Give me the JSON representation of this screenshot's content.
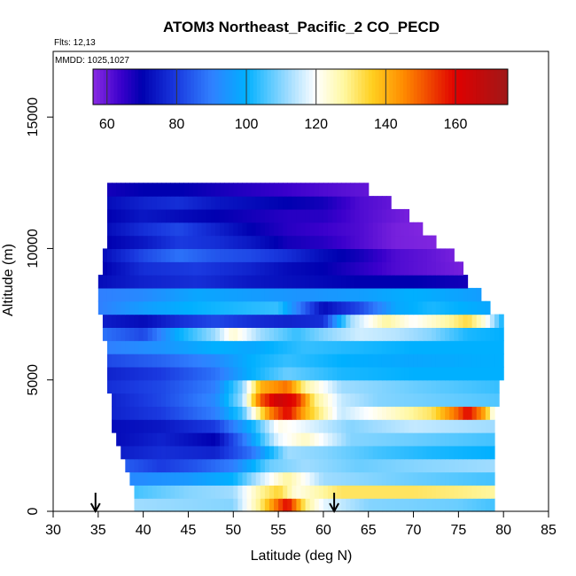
{
  "chart_data": {
    "type": "heatmap",
    "title": "ATOM3 Northeast_Pacific_2 CO_PECD",
    "flights": "Flts: 12,13",
    "mmdd": "MMDD: 1025,1027",
    "xlabel": "Latitude (deg N)",
    "ylabel": "Altitude (m)",
    "xlim": [
      30,
      85
    ],
    "ylim": [
      0,
      17500
    ],
    "x_ticks": [
      30,
      35,
      40,
      45,
      50,
      55,
      60,
      65,
      70,
      75,
      80,
      85
    ],
    "y_ticks": [
      0,
      5000,
      10000,
      15000
    ],
    "colorbar": {
      "range": [
        56,
        175
      ],
      "ticks": [
        60,
        80,
        100,
        120,
        140,
        160
      ],
      "stops": [
        {
          "v": 56,
          "c": "#8a2be2"
        },
        {
          "v": 64,
          "c": "#3a00cc"
        },
        {
          "v": 70,
          "c": "#0000b0"
        },
        {
          "v": 80,
          "c": "#1a3ae0"
        },
        {
          "v": 90,
          "c": "#3080ff"
        },
        {
          "v": 100,
          "c": "#00b0ff"
        },
        {
          "v": 112,
          "c": "#a0dcff"
        },
        {
          "v": 120,
          "c": "#ffffff"
        },
        {
          "v": 128,
          "c": "#fff7a0"
        },
        {
          "v": 136,
          "c": "#ffd020"
        },
        {
          "v": 145,
          "c": "#ff8c00"
        },
        {
          "v": 160,
          "c": "#e00000"
        },
        {
          "v": 175,
          "c": "#a01818"
        }
      ]
    },
    "arrows_lat": [
      34.7,
      61.2
    ],
    "layers": [
      {
        "z0": 0,
        "z1": 500,
        "lat_min": 39.0,
        "lat_max": 79.0,
        "knots": [
          [
            39,
            112
          ],
          [
            50,
            110
          ],
          [
            53,
            130
          ],
          [
            55,
            150
          ],
          [
            56,
            160
          ],
          [
            58,
            130
          ],
          [
            60,
            118
          ],
          [
            65,
            110
          ],
          [
            75,
            108
          ],
          [
            79,
            105
          ]
        ]
      },
      {
        "z0": 500,
        "z1": 1000,
        "lat_min": 39.0,
        "lat_max": 79.0,
        "knots": [
          [
            39,
            105
          ],
          [
            45,
            110
          ],
          [
            50,
            112
          ],
          [
            53,
            128
          ],
          [
            55,
            135
          ],
          [
            57,
            122
          ],
          [
            62,
            132
          ],
          [
            70,
            132
          ],
          [
            75,
            130
          ],
          [
            79,
            128
          ]
        ]
      },
      {
        "z0": 1000,
        "z1": 1500,
        "lat_min": 38.5,
        "lat_max": 79.0,
        "knots": [
          [
            38.5,
            92
          ],
          [
            45,
            95
          ],
          [
            50,
            100
          ],
          [
            53,
            115
          ],
          [
            56,
            128
          ],
          [
            60,
            112
          ],
          [
            65,
            110
          ],
          [
            70,
            108
          ],
          [
            79,
            105
          ]
        ]
      },
      {
        "z0": 1500,
        "z1": 2000,
        "lat_min": 38.0,
        "lat_max": 79.0,
        "knots": [
          [
            38,
            85
          ],
          [
            42,
            80
          ],
          [
            46,
            84
          ],
          [
            50,
            90
          ],
          [
            54,
            108
          ],
          [
            58,
            112
          ],
          [
            64,
            108
          ],
          [
            70,
            110
          ],
          [
            79,
            112
          ]
        ]
      },
      {
        "z0": 2000,
        "z1": 2500,
        "lat_min": 37.5,
        "lat_max": 79.0,
        "knots": [
          [
            37.5,
            75
          ],
          [
            42,
            78
          ],
          [
            48,
            76
          ],
          [
            52,
            88
          ],
          [
            56,
            112
          ],
          [
            60,
            110
          ],
          [
            66,
            105
          ],
          [
            72,
            102
          ],
          [
            79,
            100
          ]
        ]
      },
      {
        "z0": 2500,
        "z1": 3000,
        "lat_min": 37.0,
        "lat_max": 79.0,
        "knots": [
          [
            37,
            72
          ],
          [
            42,
            76
          ],
          [
            48,
            70
          ],
          [
            51,
            88
          ],
          [
            55,
            118
          ],
          [
            58,
            125
          ],
          [
            63,
            110
          ],
          [
            70,
            108
          ],
          [
            79,
            105
          ]
        ]
      },
      {
        "z0": 3000,
        "z1": 3500,
        "lat_min": 36.5,
        "lat_max": 79.0,
        "knots": [
          [
            36.5,
            72
          ],
          [
            42,
            74
          ],
          [
            48,
            80
          ],
          [
            52,
            100
          ],
          [
            55,
            122
          ],
          [
            58,
            118
          ],
          [
            63,
            110
          ],
          [
            70,
            115
          ],
          [
            79,
            112
          ]
        ]
      },
      {
        "z0": 3500,
        "z1": 4000,
        "lat_min": 36.5,
        "lat_max": 79.0,
        "knots": [
          [
            36.5,
            76
          ],
          [
            42,
            80
          ],
          [
            48,
            90
          ],
          [
            51,
            105
          ],
          [
            54,
            145
          ],
          [
            56,
            160
          ],
          [
            58,
            140
          ],
          [
            62,
            115
          ],
          [
            68,
            125
          ],
          [
            72,
            132
          ],
          [
            75,
            150
          ],
          [
            76,
            160
          ],
          [
            78,
            140
          ],
          [
            79,
            118
          ]
        ]
      },
      {
        "z0": 4000,
        "z1": 4500,
        "lat_min": 36.5,
        "lat_max": 79.5,
        "knots": [
          [
            36.5,
            76
          ],
          [
            42,
            82
          ],
          [
            48,
            92
          ],
          [
            51,
            112
          ],
          [
            53,
            150
          ],
          [
            55,
            165
          ],
          [
            57,
            158
          ],
          [
            59,
            130
          ],
          [
            62,
            115
          ],
          [
            66,
            110
          ],
          [
            79.5,
            106
          ]
        ]
      },
      {
        "z0": 4500,
        "z1": 5000,
        "lat_min": 36.0,
        "lat_max": 79.5,
        "knots": [
          [
            36,
            78
          ],
          [
            42,
            82
          ],
          [
            48,
            90
          ],
          [
            51,
            110
          ],
          [
            53,
            140
          ],
          [
            56,
            148
          ],
          [
            58,
            128
          ],
          [
            62,
            112
          ],
          [
            70,
            108
          ],
          [
            79.5,
            104
          ]
        ]
      },
      {
        "z0": 5000,
        "z1": 5500,
        "lat_min": 36.0,
        "lat_max": 80.0,
        "knots": [
          [
            36,
            76
          ],
          [
            42,
            80
          ],
          [
            48,
            88
          ],
          [
            52,
            100
          ],
          [
            56,
            108
          ],
          [
            62,
            102
          ],
          [
            70,
            100
          ],
          [
            80,
            100
          ]
        ]
      },
      {
        "z0": 5500,
        "z1": 6000,
        "lat_min": 36.0,
        "lat_max": 80.0,
        "knots": [
          [
            36,
            82
          ],
          [
            42,
            86
          ],
          [
            48,
            92
          ],
          [
            52,
            100
          ],
          [
            56,
            104
          ],
          [
            62,
            100
          ],
          [
            70,
            98
          ],
          [
            80,
            100
          ]
        ]
      },
      {
        "z0": 6000,
        "z1": 6500,
        "lat_min": 36.0,
        "lat_max": 80.0,
        "knots": [
          [
            36,
            90
          ],
          [
            42,
            94
          ],
          [
            48,
            100
          ],
          [
            52,
            98
          ],
          [
            58,
            104
          ],
          [
            64,
            102
          ],
          [
            70,
            100
          ],
          [
            80,
            100
          ]
        ]
      },
      {
        "z0": 6500,
        "z1": 7000,
        "lat_min": 35.5,
        "lat_max": 80.0,
        "knots": [
          [
            35.5,
            88
          ],
          [
            40,
            82
          ],
          [
            44,
            100
          ],
          [
            48,
            112
          ],
          [
            50,
            124
          ],
          [
            53,
            112
          ],
          [
            57,
            104
          ],
          [
            60,
            110
          ],
          [
            64,
            116
          ],
          [
            68,
            114
          ],
          [
            72,
            110
          ],
          [
            76,
            102
          ],
          [
            80,
            100
          ]
        ]
      },
      {
        "z0": 7000,
        "z1": 7500,
        "lat_min": 35.5,
        "lat_max": 80.0,
        "knots": [
          [
            35.5,
            75
          ],
          [
            40,
            72
          ],
          [
            44,
            78
          ],
          [
            48,
            82
          ],
          [
            52,
            78
          ],
          [
            56,
            76
          ],
          [
            60,
            78
          ],
          [
            63,
            112
          ],
          [
            67,
            128
          ],
          [
            70,
            120
          ],
          [
            74,
            128
          ],
          [
            76,
            134
          ],
          [
            78,
            122
          ],
          [
            80,
            100
          ]
        ]
      },
      {
        "z0": 7500,
        "z1": 8000,
        "lat_min": 35.0,
        "lat_max": 78.5,
        "knots": [
          [
            35,
            90
          ],
          [
            40,
            96
          ],
          [
            45,
            100
          ],
          [
            50,
            102
          ],
          [
            55,
            104
          ],
          [
            60,
            72
          ],
          [
            64,
            82
          ],
          [
            68,
            98
          ],
          [
            72,
            102
          ],
          [
            78.5,
            98
          ]
        ]
      },
      {
        "z0": 8000,
        "z1": 8500,
        "lat_min": 35.0,
        "lat_max": 77.5,
        "knots": [
          [
            35,
            90
          ],
          [
            40,
            92
          ],
          [
            46,
            98
          ],
          [
            52,
            96
          ],
          [
            58,
            94
          ],
          [
            64,
            96
          ],
          [
            70,
            100
          ],
          [
            77.5,
            96
          ]
        ]
      },
      {
        "z0": 8500,
        "z1": 9000,
        "lat_min": 35.0,
        "lat_max": 76.0,
        "knots": [
          [
            35,
            72
          ],
          [
            40,
            76
          ],
          [
            46,
            78
          ],
          [
            52,
            74
          ],
          [
            58,
            72
          ],
          [
            64,
            70
          ],
          [
            70,
            70
          ],
          [
            76,
            68
          ]
        ]
      },
      {
        "z0": 9000,
        "z1": 9500,
        "lat_min": 35.5,
        "lat_max": 75.5,
        "knots": [
          [
            35.5,
            70
          ],
          [
            40,
            78
          ],
          [
            46,
            80
          ],
          [
            52,
            76
          ],
          [
            56,
            72
          ],
          [
            60,
            70
          ],
          [
            64,
            66
          ],
          [
            68,
            62
          ],
          [
            72,
            60
          ],
          [
            75.5,
            58
          ]
        ]
      },
      {
        "z0": 9500,
        "z1": 10000,
        "lat_min": 35.5,
        "lat_max": 74.5,
        "knots": [
          [
            35.5,
            72
          ],
          [
            40,
            82
          ],
          [
            44,
            88
          ],
          [
            48,
            84
          ],
          [
            52,
            82
          ],
          [
            56,
            78
          ],
          [
            60,
            72
          ],
          [
            64,
            68
          ],
          [
            68,
            62
          ],
          [
            72,
            60
          ],
          [
            74.5,
            58
          ]
        ]
      },
      {
        "z0": 10000,
        "z1": 10500,
        "lat_min": 36.0,
        "lat_max": 72.5,
        "knots": [
          [
            36,
            70
          ],
          [
            40,
            74
          ],
          [
            44,
            80
          ],
          [
            48,
            78
          ],
          [
            52,
            74
          ],
          [
            56,
            68
          ],
          [
            60,
            66
          ],
          [
            64,
            62
          ],
          [
            68,
            58
          ],
          [
            72.5,
            57
          ]
        ]
      },
      {
        "z0": 10500,
        "z1": 11000,
        "lat_min": 36.0,
        "lat_max": 71.0,
        "knots": [
          [
            36,
            72
          ],
          [
            40,
            78
          ],
          [
            44,
            82
          ],
          [
            48,
            76
          ],
          [
            52,
            70
          ],
          [
            56,
            66
          ],
          [
            60,
            64
          ],
          [
            64,
            62
          ],
          [
            68,
            58
          ],
          [
            71,
            57
          ]
        ]
      },
      {
        "z0": 11000,
        "z1": 11500,
        "lat_min": 36.0,
        "lat_max": 69.5,
        "knots": [
          [
            36,
            70
          ],
          [
            40,
            74
          ],
          [
            44,
            72
          ],
          [
            48,
            70
          ],
          [
            52,
            68
          ],
          [
            56,
            66
          ],
          [
            60,
            66
          ],
          [
            64,
            62
          ],
          [
            69.5,
            58
          ]
        ]
      },
      {
        "z0": 11500,
        "z1": 12000,
        "lat_min": 36.0,
        "lat_max": 67.5,
        "knots": [
          [
            36,
            72
          ],
          [
            40,
            76
          ],
          [
            44,
            78
          ],
          [
            48,
            74
          ],
          [
            52,
            72
          ],
          [
            56,
            70
          ],
          [
            60,
            68
          ],
          [
            64,
            62
          ],
          [
            67.5,
            60
          ]
        ]
      },
      {
        "z0": 12000,
        "z1": 12500,
        "lat_min": 36.0,
        "lat_max": 65.0,
        "knots": [
          [
            36,
            68
          ],
          [
            40,
            70
          ],
          [
            44,
            70
          ],
          [
            48,
            68
          ],
          [
            52,
            66
          ],
          [
            56,
            64
          ],
          [
            60,
            62
          ],
          [
            65,
            60
          ]
        ]
      }
    ]
  }
}
